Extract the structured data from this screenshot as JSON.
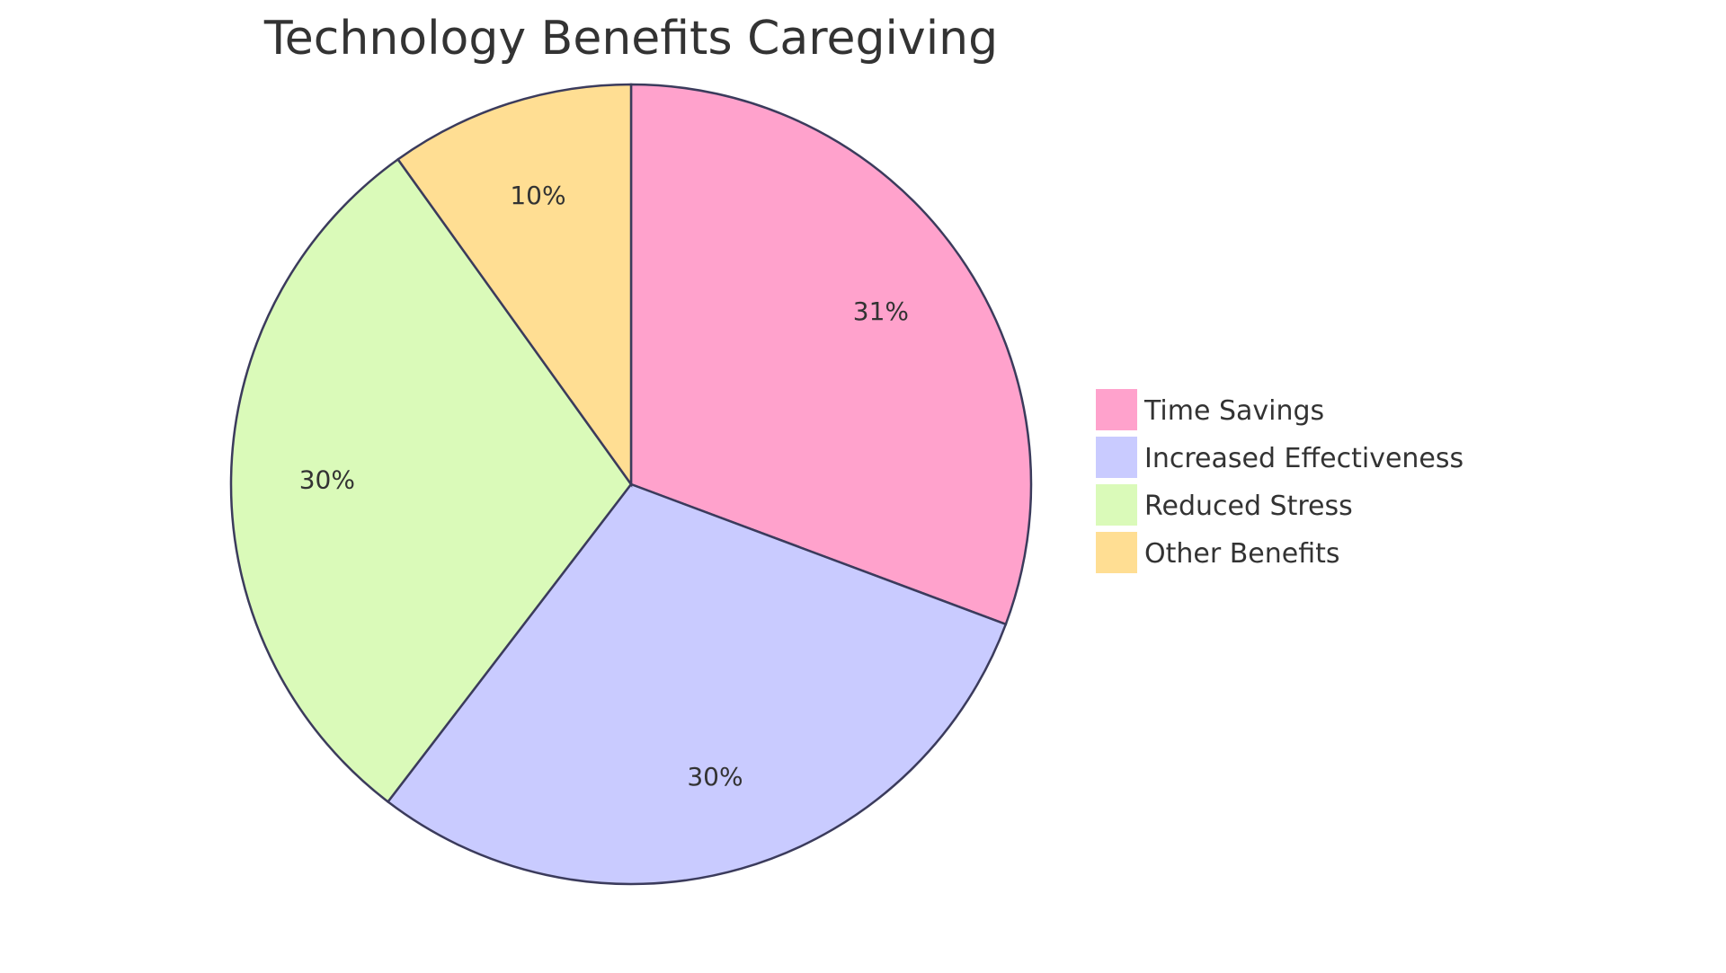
{
  "chart_data": {
    "type": "pie",
    "title": "Technology Benefits Caregiving",
    "categories": [
      "Time Savings",
      "Increased Effectiveness",
      "Reduced Stress",
      "Other Benefits"
    ],
    "values": [
      31,
      30,
      30,
      10
    ],
    "labels": [
      "31%",
      "30%",
      "30%",
      "10%"
    ],
    "colors": [
      "#FFA2CC",
      "#C9CBFF",
      "#DAFAB9",
      "#FFDE93"
    ],
    "stroke_color": "#3B3B5C",
    "start_angle": "top, clockwise",
    "legend_position": "right"
  }
}
